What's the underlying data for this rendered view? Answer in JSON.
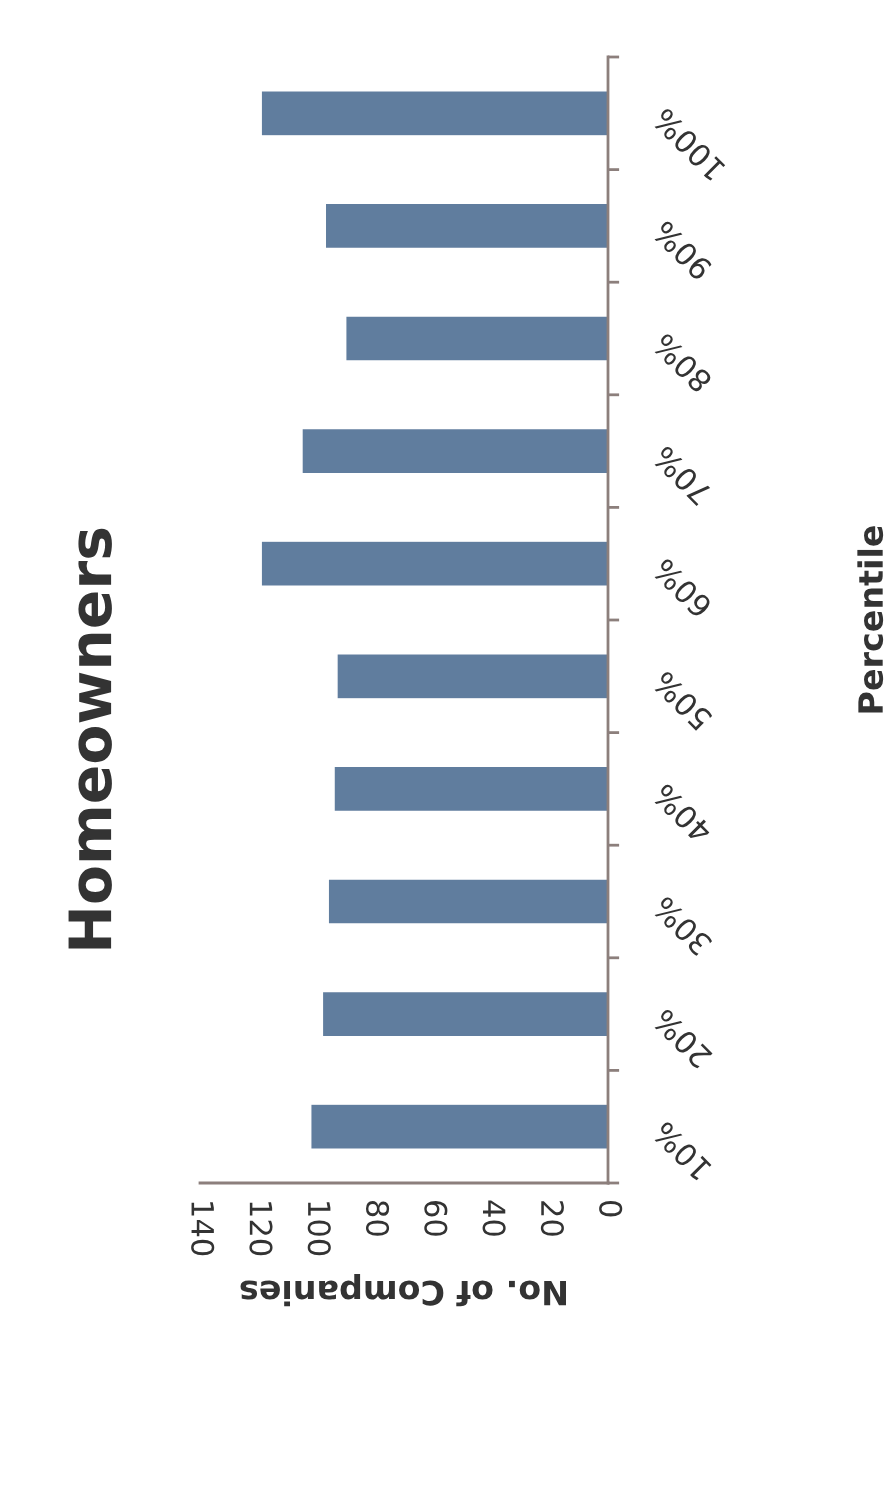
{
  "chart_data": {
    "type": "bar",
    "orientation": "horizontal",
    "title": "Homeowners",
    "xlabel": "No. of Companies",
    "ylabel": "Percentile",
    "categories": [
      "100%",
      "90%",
      "80%",
      "70%",
      "60%",
      "50%",
      "40%",
      "30%",
      "20%",
      "10%"
    ],
    "values": [
      119,
      97,
      90,
      105,
      119,
      93,
      94,
      96,
      98,
      102
    ],
    "color": "#607d9e",
    "xlim": [
      140,
      0
    ],
    "xticks": [
      140,
      120,
      100,
      80,
      60,
      40,
      20,
      0
    ],
    "grid": false,
    "legend": false
  }
}
